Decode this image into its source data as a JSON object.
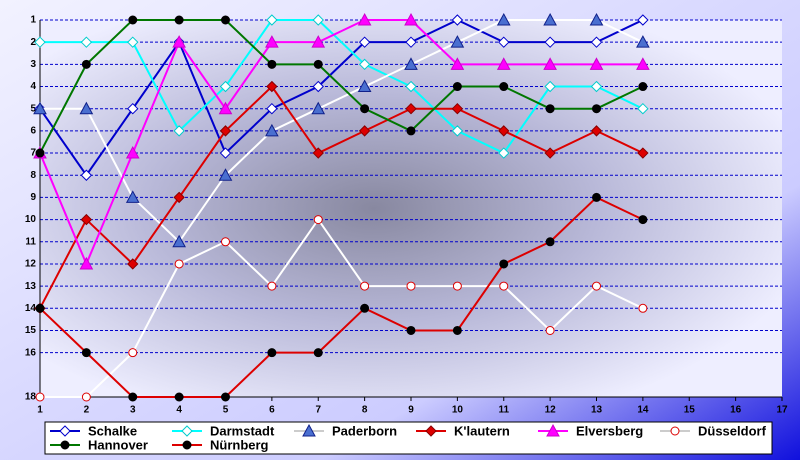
{
  "chart_data": {
    "type": "line",
    "x": [
      1,
      2,
      3,
      4,
      5,
      6,
      7,
      8,
      9,
      10,
      11,
      12,
      13,
      14
    ],
    "xlim": [
      1,
      17
    ],
    "xticks": [
      1,
      2,
      3,
      4,
      5,
      6,
      7,
      8,
      9,
      10,
      11,
      12,
      13,
      14,
      15,
      16,
      17
    ],
    "ylim": [
      1,
      18
    ],
    "yticks": [
      1,
      2,
      3,
      4,
      5,
      6,
      7,
      8,
      9,
      10,
      11,
      12,
      13,
      14,
      15,
      16,
      18
    ],
    "y_inverted": true,
    "grid": true,
    "legend": "bottom",
    "series": [
      {
        "name": "Schalke",
        "color": "#0000cc",
        "marker": "diamond",
        "marker_fill": "#ffffff",
        "marker_edge": "#0000cc",
        "values": [
          5,
          8,
          5,
          2,
          7,
          5,
          4,
          2,
          2,
          1,
          2,
          2,
          2,
          1
        ]
      },
      {
        "name": "Darmstadt",
        "color": "#00ffff",
        "marker": "diamond",
        "marker_fill": "#ffffff",
        "marker_edge": "#00cccc",
        "values": [
          2,
          2,
          2,
          6,
          4,
          1,
          1,
          3,
          4,
          6,
          7,
          4,
          4,
          5
        ]
      },
      {
        "name": "Paderborn",
        "color": "#ffffff",
        "marker": "triangle",
        "marker_fill": "#4a6fd0",
        "marker_edge": "#10208a",
        "values": [
          5,
          5,
          9,
          11,
          8,
          6,
          5,
          4,
          3,
          2,
          1,
          1,
          1,
          2
        ]
      },
      {
        "name": "K'lautern",
        "color": "#dd0000",
        "marker": "diamond",
        "marker_fill": "#dd0000",
        "marker_edge": "#880000",
        "values": [
          14,
          10,
          12,
          9,
          6,
          4,
          7,
          6,
          5,
          5,
          6,
          7,
          6,
          7
        ]
      },
      {
        "name": "Elversberg",
        "color": "#ff00ff",
        "marker": "triangle",
        "marker_fill": "#ff00ff",
        "marker_edge": "#cc00cc",
        "values": [
          7,
          12,
          7,
          2,
          5,
          2,
          2,
          1,
          1,
          3,
          3,
          3,
          3,
          3
        ]
      },
      {
        "name": "Düsseldorf",
        "color": "#ffffff",
        "marker": "circle",
        "marker_fill": "#ffffff",
        "marker_edge": "#dd0000",
        "values": [
          18,
          18,
          16,
          12,
          11,
          13,
          10,
          13,
          13,
          13,
          13,
          15,
          13,
          14
        ]
      },
      {
        "name": "Hannover",
        "color": "#007700",
        "marker": "circle",
        "marker_fill": "#000000",
        "marker_edge": "#000000",
        "values": [
          7,
          3,
          1,
          1,
          1,
          3,
          3,
          5,
          6,
          4,
          4,
          5,
          5,
          4
        ]
      },
      {
        "name": "Nürnberg",
        "color": "#dd0000",
        "marker": "circle",
        "marker_fill": "#000000",
        "marker_edge": "#000000",
        "values": [
          14,
          16,
          18,
          18,
          18,
          16,
          16,
          14,
          15,
          15,
          12,
          11,
          9,
          10
        ]
      }
    ]
  }
}
